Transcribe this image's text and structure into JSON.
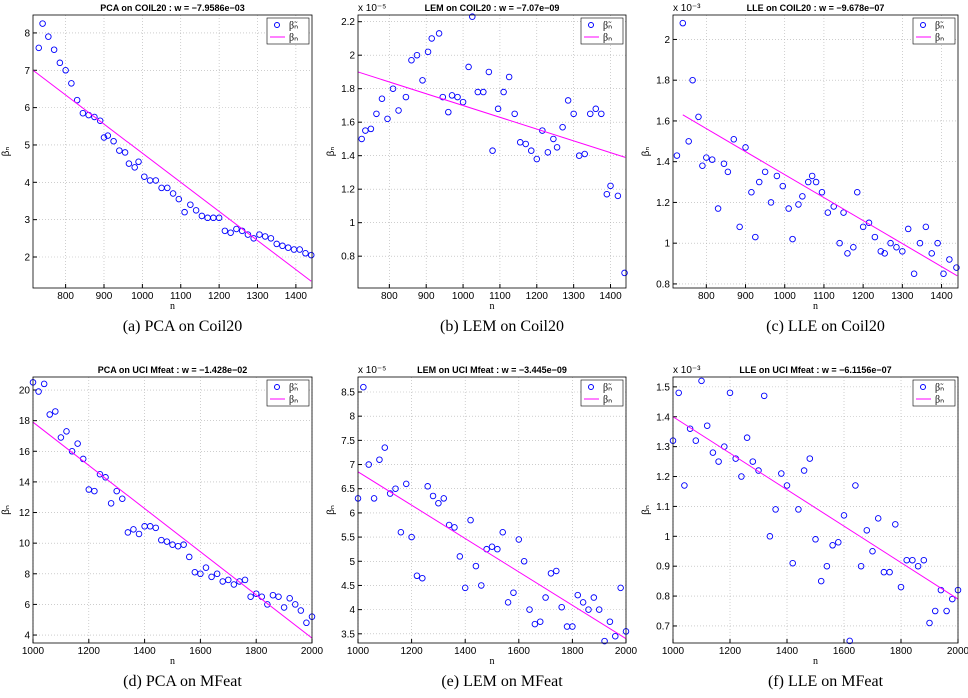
{
  "chart_data": [
    {
      "type": "scatter",
      "title": "PCA on COIL20 : w = −7.9586e−03",
      "caption": "(a)  PCA on Coil20",
      "xlabel": "n",
      "ylabel": "βₙ",
      "grid": true,
      "legend": "upper right",
      "xlim": [
        715,
        1442
      ],
      "ylim": [
        1.17,
        8.48
      ],
      "xticks": [
        800,
        900,
        1000,
        1100,
        1200,
        1300,
        1400
      ],
      "yticks": [
        2,
        3,
        4,
        5,
        6,
        7,
        8
      ],
      "series": [
        {
          "name": "β̃ₙ",
          "color": "#0000ff",
          "style": "marker",
          "x": [
            730,
            740,
            755,
            770,
            785,
            800,
            815,
            830,
            845,
            860,
            875,
            890,
            900,
            910,
            925,
            940,
            955,
            965,
            980,
            990,
            1005,
            1020,
            1035,
            1050,
            1065,
            1080,
            1095,
            1110,
            1125,
            1140,
            1155,
            1170,
            1185,
            1200,
            1215,
            1230,
            1245,
            1260,
            1275,
            1290,
            1305,
            1320,
            1335,
            1350,
            1365,
            1380,
            1395,
            1410,
            1425,
            1440
          ],
          "values": [
            7.6,
            8.25,
            7.9,
            7.55,
            7.2,
            7.0,
            6.65,
            6.2,
            5.85,
            5.8,
            5.75,
            5.65,
            5.2,
            5.25,
            5.1,
            4.85,
            4.8,
            4.5,
            4.4,
            4.55,
            4.15,
            4.05,
            4.05,
            3.85,
            3.85,
            3.7,
            3.55,
            3.2,
            3.4,
            3.25,
            3.1,
            3.05,
            3.05,
            3.05,
            2.7,
            2.65,
            2.75,
            2.7,
            2.6,
            2.5,
            2.6,
            2.55,
            2.5,
            2.35,
            2.3,
            2.25,
            2.2,
            2.2,
            2.1,
            2.05
          ]
        },
        {
          "name": "βₙ",
          "color": "#ff00ff",
          "style": "line",
          "x": [
            715,
            1440
          ],
          "values": [
            7.0,
            1.35
          ]
        }
      ]
    },
    {
      "type": "scatter",
      "title": "LEM on COIL20 : w = −7.07e−09",
      "caption": "(b)  LEM on Coil20",
      "xlabel": "n",
      "ylabel": "βₙ",
      "exponent": "x 10⁻⁵",
      "grid": true,
      "legend": "upper right",
      "xlim": [
        715,
        1442
      ],
      "ylim": [
        0.61,
        2.24
      ],
      "xticks": [
        800,
        900,
        1000,
        1100,
        1200,
        1300,
        1400
      ],
      "yticks": [
        0.8,
        1,
        1.2,
        1.4,
        1.6,
        1.8,
        2,
        2.2
      ],
      "series": [
        {
          "name": "β̃ₙ",
          "color": "#0000ff",
          "style": "marker",
          "x": [
            725,
            735,
            750,
            765,
            780,
            795,
            810,
            825,
            845,
            860,
            875,
            890,
            905,
            915,
            935,
            945,
            960,
            970,
            985,
            1000,
            1015,
            1025,
            1040,
            1055,
            1070,
            1080,
            1095,
            1110,
            1125,
            1140,
            1155,
            1170,
            1185,
            1200,
            1215,
            1230,
            1245,
            1255,
            1270,
            1285,
            1300,
            1315,
            1330,
            1345,
            1360,
            1375,
            1390,
            1400,
            1420,
            1438
          ],
          "values": [
            1.5,
            1.55,
            1.56,
            1.65,
            1.74,
            1.62,
            1.8,
            1.67,
            1.75,
            1.97,
            2.0,
            1.85,
            2.02,
            2.1,
            2.13,
            1.75,
            1.66,
            1.76,
            1.75,
            1.72,
            1.93,
            2.23,
            1.78,
            1.78,
            1.9,
            1.43,
            1.68,
            1.78,
            1.87,
            1.65,
            1.48,
            1.47,
            1.43,
            1.38,
            1.55,
            1.42,
            1.5,
            1.45,
            1.57,
            1.73,
            1.65,
            1.4,
            1.41,
            1.65,
            1.68,
            1.65,
            1.17,
            1.22,
            1.16,
            0.7
          ]
        },
        {
          "name": "βₙ",
          "color": "#ff00ff",
          "style": "line",
          "x": [
            715,
            1440
          ],
          "values": [
            1.9,
            1.39
          ]
        }
      ]
    },
    {
      "type": "scatter",
      "title": "LLE on COIL20 : w = −9.678e−07",
      "caption": "(c)  LLE on Coil20",
      "xlabel": "n",
      "ylabel": "βₙ",
      "exponent": "x 10⁻³",
      "grid": true,
      "legend": "upper right",
      "xlim": [
        715,
        1442
      ],
      "ylim": [
        0.78,
        2.12
      ],
      "xticks": [
        800,
        900,
        1000,
        1100,
        1200,
        1300,
        1400
      ],
      "yticks": [
        0.8,
        1,
        1.2,
        1.4,
        1.6,
        1.8,
        2
      ],
      "series": [
        {
          "name": "β̃ₙ",
          "color": "#0000ff",
          "style": "marker",
          "x": [
            725,
            740,
            755,
            765,
            780,
            790,
            800,
            815,
            830,
            845,
            855,
            870,
            885,
            900,
            915,
            925,
            935,
            950,
            965,
            980,
            995,
            1010,
            1020,
            1035,
            1045,
            1060,
            1070,
            1080,
            1095,
            1110,
            1125,
            1140,
            1150,
            1160,
            1175,
            1185,
            1200,
            1215,
            1230,
            1245,
            1255,
            1270,
            1285,
            1300,
            1315,
            1330,
            1345,
            1360,
            1375,
            1390,
            1405,
            1420,
            1438
          ],
          "values": [
            1.43,
            2.08,
            1.5,
            1.8,
            1.62,
            1.38,
            1.42,
            1.41,
            1.17,
            1.39,
            1.35,
            1.51,
            1.08,
            1.47,
            1.25,
            1.03,
            1.3,
            1.35,
            1.2,
            1.33,
            1.28,
            1.17,
            1.02,
            1.19,
            1.23,
            1.3,
            1.33,
            1.3,
            1.25,
            1.15,
            1.18,
            1.0,
            1.15,
            0.95,
            0.98,
            1.25,
            1.08,
            1.1,
            1.03,
            0.96,
            0.95,
            1.0,
            0.98,
            0.96,
            1.07,
            0.85,
            1.0,
            1.08,
            0.95,
            1.0,
            0.85,
            0.92,
            0.88
          ]
        },
        {
          "name": "βₙ",
          "color": "#ff00ff",
          "style": "line",
          "x": [
            740,
            1440
          ],
          "values": [
            1.63,
            0.84
          ]
        }
      ]
    },
    {
      "type": "scatter",
      "title": "PCA on UCI Mfeat : w = −1.428e−02",
      "caption": "(d)  PCA on MFeat",
      "xlabel": "n",
      "ylabel": "βₙ",
      "grid": true,
      "legend": "upper right",
      "xlim": [
        1000,
        2000
      ],
      "ylim": [
        3.48,
        20.85
      ],
      "xticks": [
        1000,
        1200,
        1400,
        1600,
        1800,
        2000
      ],
      "yticks": [
        4,
        6,
        8,
        10,
        12,
        14,
        16,
        18,
        20
      ],
      "series": [
        {
          "name": "β̃ₙ",
          "color": "#0000ff",
          "style": "marker",
          "x": [
            1000,
            1020,
            1040,
            1060,
            1080,
            1100,
            1120,
            1140,
            1160,
            1180,
            1200,
            1220,
            1240,
            1260,
            1280,
            1300,
            1320,
            1340,
            1360,
            1380,
            1400,
            1420,
            1440,
            1460,
            1480,
            1500,
            1520,
            1540,
            1560,
            1580,
            1600,
            1620,
            1640,
            1660,
            1680,
            1700,
            1720,
            1740,
            1760,
            1780,
            1800,
            1820,
            1840,
            1860,
            1880,
            1900,
            1920,
            1940,
            1960,
            1980,
            2000
          ],
          "values": [
            20.5,
            19.9,
            20.4,
            18.4,
            18.6,
            16.9,
            17.3,
            16.0,
            16.5,
            15.5,
            13.5,
            13.4,
            14.5,
            14.3,
            12.6,
            13.4,
            12.9,
            10.7,
            10.9,
            10.6,
            11.1,
            11.1,
            11.0,
            10.2,
            10.1,
            9.9,
            9.8,
            9.9,
            9.1,
            8.1,
            8.0,
            8.4,
            7.8,
            8.0,
            7.5,
            7.6,
            7.3,
            7.5,
            7.6,
            6.5,
            6.7,
            6.5,
            6.0,
            6.6,
            6.5,
            5.8,
            6.4,
            6.0,
            5.6,
            4.8,
            5.2
          ]
        },
        {
          "name": "βₙ",
          "color": "#ff00ff",
          "style": "line",
          "x": [
            1000,
            2000
          ],
          "values": [
            17.9,
            3.8
          ]
        }
      ]
    },
    {
      "type": "scatter",
      "title": "LEM on UCI Mfeat : w = −3.445e−09",
      "caption": "(e)  LEM on MFeat",
      "xlabel": "n",
      "ylabel": "βₙ",
      "exponent": "x 10⁻⁵",
      "grid": true,
      "legend": "upper right",
      "xlim": [
        1000,
        2000
      ],
      "ylim": [
        3.31,
        8.81
      ],
      "xticks": [
        1000,
        1200,
        1400,
        1600,
        1800,
        2000
      ],
      "yticks": [
        3.5,
        4,
        4.5,
        5,
        5.5,
        6,
        6.5,
        7,
        7.5,
        8,
        8.5
      ],
      "series": [
        {
          "name": "β̃ₙ",
          "color": "#0000ff",
          "style": "marker",
          "x": [
            1000,
            1020,
            1040,
            1060,
            1080,
            1100,
            1120,
            1140,
            1160,
            1180,
            1200,
            1220,
            1240,
            1260,
            1280,
            1300,
            1320,
            1340,
            1360,
            1380,
            1400,
            1420,
            1440,
            1460,
            1480,
            1500,
            1520,
            1540,
            1560,
            1580,
            1600,
            1620,
            1640,
            1660,
            1680,
            1700,
            1720,
            1740,
            1760,
            1780,
            1800,
            1820,
            1840,
            1860,
            1880,
            1900,
            1920,
            1940,
            1960,
            1980,
            2000
          ],
          "values": [
            6.3,
            8.6,
            7.0,
            6.3,
            7.1,
            7.35,
            6.4,
            6.5,
            5.6,
            6.6,
            5.5,
            4.7,
            4.65,
            6.55,
            6.35,
            6.2,
            6.3,
            5.75,
            5.7,
            5.1,
            4.45,
            5.85,
            4.9,
            4.5,
            5.25,
            5.3,
            5.25,
            5.6,
            4.15,
            4.35,
            5.45,
            5.0,
            4.0,
            3.7,
            3.75,
            4.25,
            4.75,
            4.8,
            4.05,
            3.65,
            3.65,
            4.3,
            4.15,
            4.0,
            4.25,
            4.0,
            3.35,
            3.75,
            3.45,
            4.45,
            3.55
          ]
        },
        {
          "name": "βₙ",
          "color": "#ff00ff",
          "style": "line",
          "x": [
            1000,
            2000
          ],
          "values": [
            6.85,
            3.4
          ]
        }
      ]
    },
    {
      "type": "scatter",
      "title": "LLE on UCI Mfeat : w = −6.1156e−07",
      "caption": "(f)  LLE on MFeat",
      "xlabel": "n",
      "ylabel": "βₙ",
      "exponent": "x 10⁻³",
      "grid": true,
      "legend": "upper right",
      "xlim": [
        1000,
        2000
      ],
      "ylim": [
        0.643,
        1.533
      ],
      "xticks": [
        1000,
        1200,
        1400,
        1600,
        1800,
        2000
      ],
      "yticks": [
        0.7,
        0.8,
        0.9,
        1,
        1.1,
        1.2,
        1.3,
        1.4,
        1.5
      ],
      "series": [
        {
          "name": "β̃ₙ",
          "color": "#0000ff",
          "style": "marker",
          "x": [
            1000,
            1020,
            1040,
            1060,
            1080,
            1100,
            1120,
            1140,
            1160,
            1180,
            1200,
            1220,
            1240,
            1260,
            1280,
            1300,
            1320,
            1340,
            1360,
            1380,
            1400,
            1420,
            1440,
            1460,
            1480,
            1500,
            1520,
            1540,
            1560,
            1580,
            1600,
            1620,
            1640,
            1660,
            1680,
            1700,
            1720,
            1740,
            1760,
            1780,
            1800,
            1820,
            1840,
            1860,
            1880,
            1900,
            1920,
            1940,
            1960,
            1980,
            2000
          ],
          "values": [
            1.32,
            1.48,
            1.17,
            1.36,
            1.32,
            1.52,
            1.37,
            1.28,
            1.25,
            1.3,
            1.48,
            1.26,
            1.2,
            1.33,
            1.25,
            1.22,
            1.47,
            1.0,
            1.09,
            1.21,
            1.17,
            0.91,
            1.09,
            1.22,
            1.26,
            0.99,
            0.85,
            0.9,
            0.97,
            0.98,
            1.07,
            0.65,
            1.17,
            0.9,
            1.02,
            0.95,
            1.06,
            0.88,
            0.88,
            1.04,
            0.83,
            0.92,
            0.92,
            0.9,
            0.92,
            0.71,
            0.75,
            0.82,
            0.75,
            0.79,
            0.82
          ]
        },
        {
          "name": "βₙ",
          "color": "#ff00ff",
          "style": "line",
          "x": [
            1000,
            2000
          ],
          "values": [
            1.4,
            0.79
          ]
        }
      ]
    }
  ]
}
